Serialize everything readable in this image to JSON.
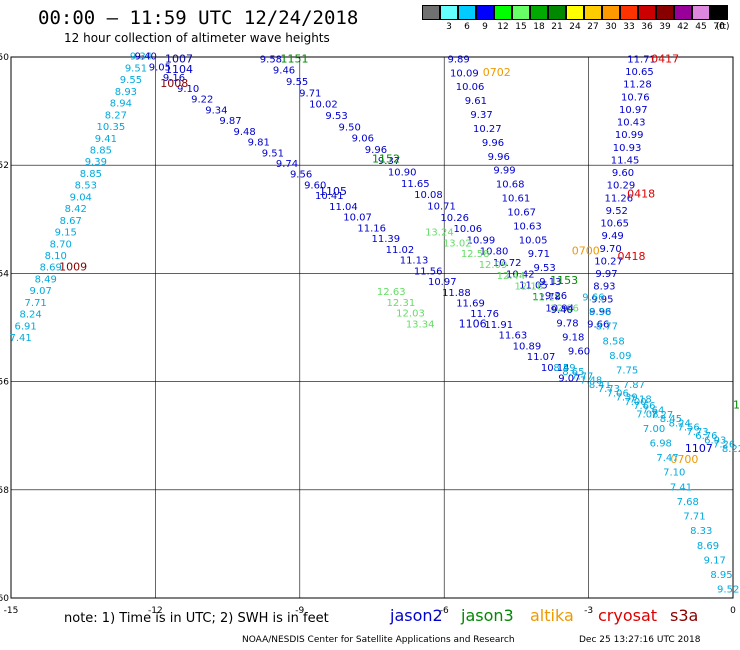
{
  "header": {
    "title": "00:00 – 11:59 UTC 12/24/2018",
    "subtitle": "12 hour collection of altimeter wave heights"
  },
  "legend": {
    "items": [
      {
        "label": "",
        "color": "#707070"
      },
      {
        "label": "3",
        "color": "#66ffff"
      },
      {
        "label": "6",
        "color": "#00ccff"
      },
      {
        "label": "9",
        "color": "#0000ff"
      },
      {
        "label": "12",
        "color": "#00ff00"
      },
      {
        "label": "15",
        "color": "#66ff66"
      },
      {
        "label": "18",
        "color": "#00aa00"
      },
      {
        "label": "21",
        "color": "#008800"
      },
      {
        "label": "24",
        "color": "#ffff00"
      },
      {
        "label": "27",
        "color": "#ffcc00"
      },
      {
        "label": "30",
        "color": "#ff9900"
      },
      {
        "label": "33",
        "color": "#ff3300"
      },
      {
        "label": "36",
        "color": "#cc0000"
      },
      {
        "label": "39",
        "color": "#880000"
      },
      {
        "label": "42",
        "color": "#990099"
      },
      {
        "label": "45",
        "color": "#dd88dd"
      },
      {
        "label": "70",
        "color": "#000000"
      }
    ],
    "unit": "(ft)"
  },
  "axes": {
    "x_ticks": [
      "-15",
      "-12",
      "-9",
      "-6",
      "-3",
      "0"
    ],
    "y_ticks": [
      "-50",
      "-52",
      "-54",
      "-56",
      "-58",
      "-60"
    ]
  },
  "tracks": [
    {
      "name": "track-1009",
      "color": "#00aadd",
      "lon_start": -14.8,
      "lat_start": -55.25,
      "lon_end": -12.3,
      "lat_end": -50.05,
      "values": [
        "7.41",
        "6.91",
        "8.24",
        "7.71",
        "9.07",
        "8.49",
        "8.69",
        "8.10",
        "8.70",
        "9.15",
        "8.67",
        "8.42",
        "9.04",
        "8.53",
        "8.85",
        "9.39",
        "8.85",
        "9.41",
        "10.35",
        "8.27",
        "8.94",
        "8.93",
        "9.55",
        "9.51",
        "9.34"
      ]
    },
    {
      "name": "track-1104",
      "color": "#0000cc",
      "lon_start": -12.2,
      "lat_start": -50.05,
      "lon_end": -3.4,
      "lat_end": -56.0,
      "values": [
        "9.40",
        "9.05",
        "9.16",
        "9.10",
        "9.22",
        "9.34",
        "9.87",
        "9.48",
        "9.81",
        "9.51",
        "9.74",
        "9.56",
        "9.60",
        "10.41",
        "11.04",
        "10.07",
        "11.16",
        "11.39",
        "11.02",
        "11.13",
        "11.56",
        "10.97",
        "11.88",
        "11.69",
        "11.76",
        "11.91",
        "11.63",
        "10.89",
        "11.07",
        "10.14",
        "9.07"
      ]
    },
    {
      "name": "track-1151",
      "color": "#0000cc",
      "lon_start": -9.6,
      "lat_start": -50.1,
      "lon_end": -3.6,
      "lat_end": -54.7,
      "values": [
        "9.58",
        "9.46",
        "9.55",
        "9.71",
        "10.02",
        "9.53",
        "9.50",
        "9.06",
        "9.96",
        "9.37",
        "10.90",
        "11.65",
        "10.08",
        "10.71",
        "10.26",
        "10.06",
        "10.99",
        "10.80",
        "10.72",
        "10.42",
        "11.05",
        "11.78",
        "10.94"
      ]
    },
    {
      "name": "track-1152",
      "color": "#66dd66",
      "lon_start": -6.1,
      "lat_start": -53.3,
      "lon_end": -3.5,
      "lat_end": -54.7,
      "values": [
        "13.24",
        "13.02",
        "12.58",
        "12.09",
        "12.44",
        "12.18",
        "12.17",
        "12.06"
      ]
    },
    {
      "name": "track-1105",
      "color": "#66dd66",
      "lon_start": -7.1,
      "lat_start": -54.4,
      "lon_end": -6.5,
      "lat_end": -55.0,
      "values": [
        "12.63",
        "12.31",
        "12.03",
        "13.34"
      ]
    },
    {
      "name": "track-0702",
      "color": "#0000cc",
      "lon_start": -5.7,
      "lat_start": -50.1,
      "lon_end": -3.2,
      "lat_end": -55.5,
      "values": [
        "9.89",
        "10.09",
        "10.06",
        "9.61",
        "9.37",
        "10.27",
        "9.96",
        "9.96",
        "9.99",
        "10.68",
        "10.61",
        "10.67",
        "10.63",
        "10.05",
        "9.71",
        "9.53",
        "9.13",
        "9.26",
        "9.40",
        "9.78",
        "9.18",
        "9.60"
      ]
    },
    {
      "name": "track-0417",
      "color": "#0000cc",
      "lon_start": -1.9,
      "lat_start": -50.1,
      "lon_end": -2.8,
      "lat_end": -55.0,
      "values": [
        "11.71",
        "10.65",
        "11.28",
        "10.76",
        "10.97",
        "10.43",
        "10.99",
        "10.93",
        "11.45",
        "9.60",
        "10.29",
        "11.26",
        "9.52",
        "10.65",
        "9.49",
        "9.70",
        "10.27",
        "9.97",
        "8.93",
        "9.95",
        "9.96",
        "9.66"
      ]
    },
    {
      "name": "track-0418",
      "color": "#00aadd",
      "lon_start": -2.9,
      "lat_start": -54.5,
      "lon_end": -0.1,
      "lat_end": -59.9,
      "values": [
        "9.66",
        "8.38",
        "8.77",
        "8.58",
        "8.09",
        "7.75",
        "7.87",
        "7.18",
        "7.08",
        "7.00",
        "6.98",
        "7.47",
        "7.10",
        "7.41",
        "7.68",
        "7.71",
        "8.33",
        "8.69",
        "9.17",
        "8.95",
        "9.52"
      ]
    },
    {
      "name": "track-1106",
      "color": "#00aadd",
      "lon_start": -3.5,
      "lat_start": -55.8,
      "lon_end": 0.0,
      "lat_end": -57.3,
      "values": [
        "8.59",
        "8.65",
        "7.77",
        "7.48",
        "8.41",
        "7.73",
        "7.06",
        "7.39",
        "7.00",
        "7.66",
        "7.64",
        "7.27",
        "8.45",
        "8.24",
        "7.56",
        "7.73",
        "6.76",
        "6.93",
        "7.26",
        "8.22"
      ]
    }
  ],
  "tags": [
    {
      "text": "1007",
      "color": "#000099",
      "lon": -11.8,
      "lat": -50.1
    },
    {
      "text": "1104",
      "color": "#0000cc",
      "lon": -11.8,
      "lat": -50.3
    },
    {
      "text": "1008",
      "color": "#880000",
      "lon": -11.9,
      "lat": -50.55
    },
    {
      "text": "1009",
      "color": "#880000",
      "lon": -14.0,
      "lat": -53.95
    },
    {
      "text": "1151",
      "color": "#008800",
      "lon": -9.4,
      "lat": -50.1
    },
    {
      "text": "1152",
      "color": "#008800",
      "lon": -7.5,
      "lat": -51.95
    },
    {
      "text": "1105",
      "color": "#0000cc",
      "lon": -8.6,
      "lat": -52.55
    },
    {
      "text": "1153",
      "color": "#008800",
      "lon": -3.8,
      "lat": -54.2
    },
    {
      "text": "1106",
      "color": "#0000cc",
      "lon": -5.7,
      "lat": -55.0
    },
    {
      "text": "0702",
      "color": "#ee9900",
      "lon": -5.2,
      "lat": -50.35
    },
    {
      "text": "0417",
      "color": "#dd0000",
      "lon": -1.7,
      "lat": -50.1
    },
    {
      "text": "0418",
      "color": "#dd0000",
      "lon": -2.2,
      "lat": -52.6
    },
    {
      "text": "0418",
      "color": "#dd0000",
      "lon": -2.4,
      "lat": -53.75
    },
    {
      "text": "0700",
      "color": "#ee9900",
      "lon": -3.35,
      "lat": -53.65
    },
    {
      "text": "1107",
      "color": "#0000cc",
      "lon": -1.0,
      "lat": -57.3
    },
    {
      "text": "0700",
      "color": "#ee9900",
      "lon": -1.3,
      "lat": -57.5
    },
    {
      "text": "1",
      "color": "#008800",
      "lon": 0.0,
      "lat": -56.5
    }
  ],
  "footer": {
    "note": "note: 1) Time is in UTC; 2) SWH is in feet",
    "satellites": [
      {
        "label": "jason2",
        "color": "#0000cc"
      },
      {
        "label": "jason3",
        "color": "#008800"
      },
      {
        "label": "altika",
        "color": "#ee9900"
      },
      {
        "label": "cryosat",
        "color": "#dd0000"
      },
      {
        "label": "s3a",
        "color": "#880000"
      }
    ],
    "credit": "NOAA/NESDIS Center for Satellite Applications and Research",
    "timestamp": "Dec 25 13:27:16 UTC 2018"
  }
}
